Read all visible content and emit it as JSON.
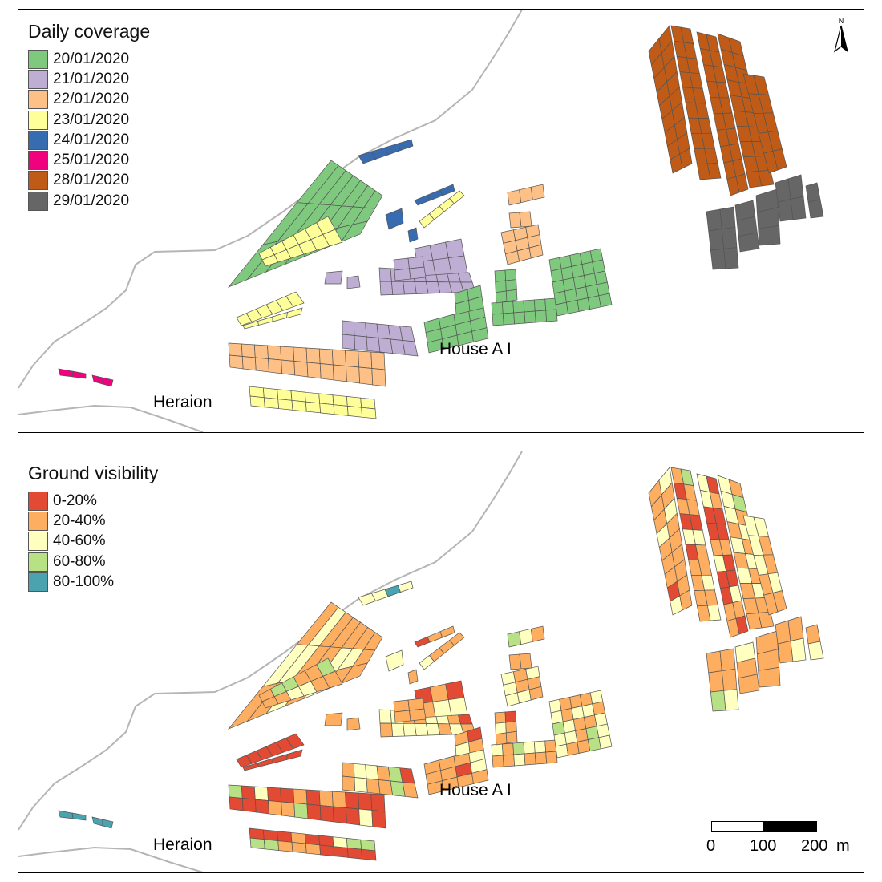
{
  "panels": [
    {
      "legend_title": "Daily coverage",
      "legend": [
        {
          "label": "20/01/2020",
          "color": "#7fc97f"
        },
        {
          "label": "21/01/2020",
          "color": "#beaed4"
        },
        {
          "label": "22/01/2020",
          "color": "#fdc086"
        },
        {
          "label": "23/01/2020",
          "color": "#ffff99"
        },
        {
          "label": "24/01/2020",
          "color": "#386cb0"
        },
        {
          "label": "25/01/2020",
          "color": "#f0027f"
        },
        {
          "label": "28/01/2020",
          "color": "#bf5b17"
        },
        {
          "label": "29/01/2020",
          "color": "#666666"
        }
      ],
      "place_labels": [
        "Heraion",
        "House A I"
      ],
      "north_label": "N"
    },
    {
      "legend_title": "Ground visibility",
      "legend": [
        {
          "label": "0-20%",
          "color": "#e34a33"
        },
        {
          "label": "20-40%",
          "color": "#fdae61"
        },
        {
          "label": "40-60%",
          "color": "#ffffbf"
        },
        {
          "label": "60-80%",
          "color": "#b8e186"
        },
        {
          "label": "80-100%",
          "color": "#4ba3b0"
        }
      ],
      "place_labels": [
        "Heraion",
        "House A I"
      ],
      "scalebar": {
        "ticks": [
          "0",
          "100",
          "200"
        ],
        "unit": "m"
      }
    }
  ]
}
